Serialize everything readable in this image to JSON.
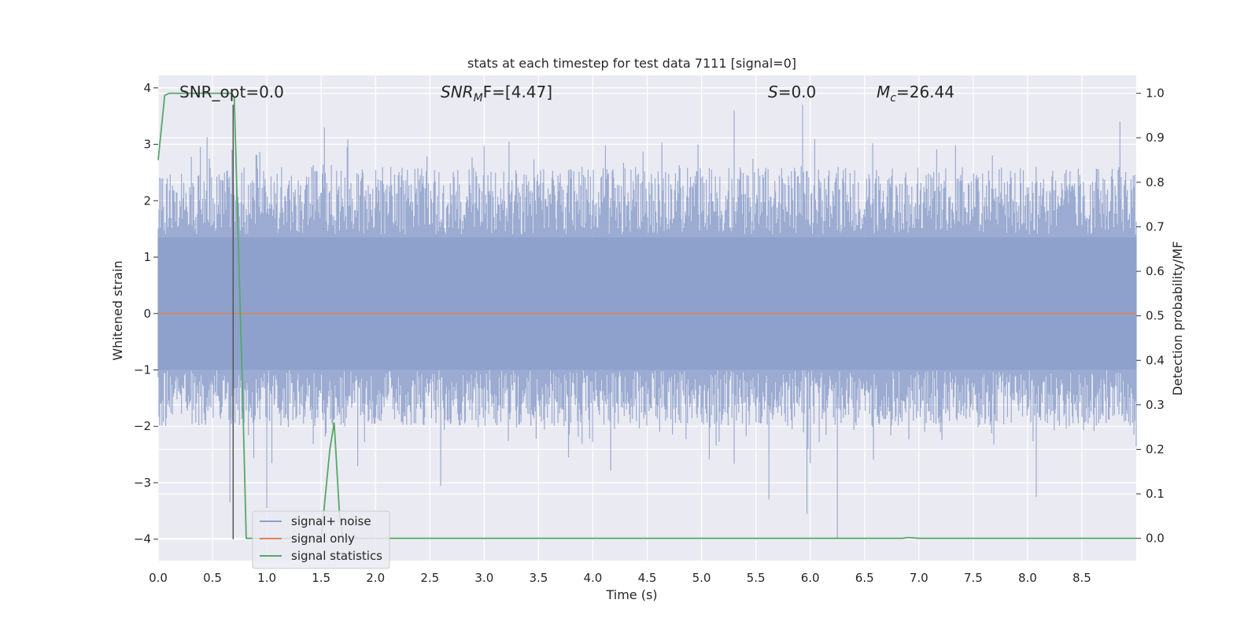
{
  "chart_data": {
    "type": "line",
    "title": "stats at each timestep for test data 7111 [signal=0]",
    "xlabel": "Time (s)",
    "ylabel": "Whitened strain",
    "ylabel_right": "Detection probability/MF",
    "xlim": [
      0.0,
      9.0
    ],
    "ylim": [
      -4.38,
      4.22
    ],
    "ylim_right": [
      -0.05,
      1.04
    ],
    "x_ticks": [
      "0.0",
      "0.5",
      "1.0",
      "1.5",
      "2.0",
      "2.5",
      "3.0",
      "3.5",
      "4.0",
      "4.5",
      "5.0",
      "5.5",
      "6.0",
      "6.5",
      "7.0",
      "7.5",
      "8.0",
      "8.5"
    ],
    "y_ticks": [
      "4",
      "3",
      "2",
      "1",
      "0",
      "−1",
      "−2",
      "−3",
      "−4"
    ],
    "y_ticks_right": [
      "1.0",
      "0.9",
      "0.8",
      "0.7",
      "0.6",
      "0.5",
      "0.4",
      "0.3",
      "0.2",
      "0.1",
      "0.0"
    ],
    "annotations": {
      "snr_opt": "SNR_opt=0.0",
      "snr_mf_main": "SNR",
      "snr_mf_sub": "M",
      "snr_mf_rest": "F=[4.47]",
      "s_main": "S",
      "s_rest": "=0.0",
      "mc_main": "M",
      "mc_sub": "c",
      "mc_rest": "=26.44"
    },
    "legend": {
      "placement": "lower-left",
      "entries": [
        {
          "label": "signal+ noise",
          "color": "#8da0cb"
        },
        {
          "label": "signal only",
          "color": "#dd8452"
        },
        {
          "label": "signal statistics",
          "color": "#55a868"
        }
      ]
    },
    "series": [
      {
        "name": "signal+ noise",
        "axis": "left",
        "color": "#8da0cb",
        "description_x_range": [
          0.0,
          9.0
        ],
        "typical_envelope": [
          -2.0,
          2.6
        ],
        "peaks": [
          {
            "x": 0.68,
            "y": 2.9
          },
          {
            "x": 1.53,
            "y": 3.3
          },
          {
            "x": 5.3,
            "y": 3.6
          },
          {
            "x": 5.93,
            "y": 3.7
          },
          {
            "x": 8.85,
            "y": 3.4
          }
        ],
        "troughs": [
          {
            "x": 0.66,
            "y": -3.35
          },
          {
            "x": 1.0,
            "y": -3.45
          },
          {
            "x": 2.6,
            "y": -3.05
          },
          {
            "x": 5.62,
            "y": -3.3
          },
          {
            "x": 5.97,
            "y": -3.55
          },
          {
            "x": 6.25,
            "y": -4.0
          },
          {
            "x": 8.08,
            "y": -3.25
          }
        ]
      },
      {
        "name": "signal only",
        "axis": "left",
        "color": "#dd8452",
        "x": [
          0.0,
          9.0
        ],
        "y": [
          0.0,
          0.0
        ]
      },
      {
        "name": "signal statistics",
        "axis": "right",
        "color": "#55a868",
        "x": [
          0.0,
          0.06,
          0.1,
          0.2,
          0.4,
          0.6,
          0.68,
          0.7,
          0.78,
          0.81,
          1.0,
          1.5,
          1.58,
          1.62,
          1.67,
          1.7,
          2.0,
          3.0,
          4.0,
          5.0,
          6.0,
          6.5,
          6.85,
          6.9,
          7.0,
          8.0,
          9.0
        ],
        "y": [
          0.85,
          0.995,
          1.0,
          1.0,
          1.0,
          1.0,
          1.0,
          0.99,
          0.3,
          0.0,
          0.0,
          0.0,
          0.2,
          0.26,
          0.05,
          0.0,
          0.0,
          0.0,
          0.0,
          0.0,
          0.0,
          0.0,
          0.0,
          0.002,
          0.0,
          0.0,
          0.0
        ]
      }
    ],
    "vline": {
      "x": 0.69,
      "color": "#555555",
      "y_from": -4.0,
      "y_to": 3.7
    },
    "grid": true
  }
}
